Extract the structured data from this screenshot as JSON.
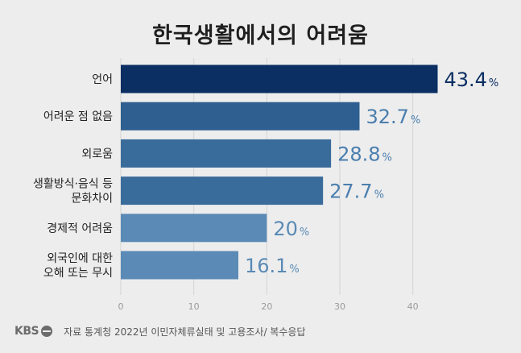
{
  "chart_data": {
    "type": "bar",
    "orientation": "horizontal",
    "title": "한국생활에서의 어려움",
    "categories": [
      [
        "언어"
      ],
      [
        "어려운 점 없음"
      ],
      [
        "외로움"
      ],
      [
        "생활방식·음식 등",
        "문화차이"
      ],
      [
        "경제적 어려움"
      ],
      [
        "외국인에 대한",
        "오해 또는 무시"
      ]
    ],
    "values": [
      43.4,
      32.7,
      28.8,
      27.7,
      20,
      16.1
    ],
    "value_labels": [
      "43.4",
      "32.7",
      "28.8",
      "27.7",
      "20",
      "16.1"
    ],
    "unit": "%",
    "xlim": [
      0,
      45
    ],
    "xticks": [
      "0",
      "10",
      "20",
      "30",
      "40"
    ],
    "xtick_values": [
      0,
      10,
      20,
      30,
      40
    ],
    "grid": true,
    "bar_colors": [
      "#0b2f63",
      "#2e5f90",
      "#3a6c9b",
      "#3a6c9b",
      "#5a8ab5",
      "#5a8ab5"
    ],
    "label_colors": [
      "#0b2f63",
      "#4a7eae",
      "#4a7eae",
      "#4a7eae",
      "#5a8ab5",
      "#5a8ab5"
    ]
  },
  "footer": {
    "logo": "KBS",
    "source": "자료 통계청 2022년 이민자체류실태 및 고용조사/ 복수응답"
  }
}
